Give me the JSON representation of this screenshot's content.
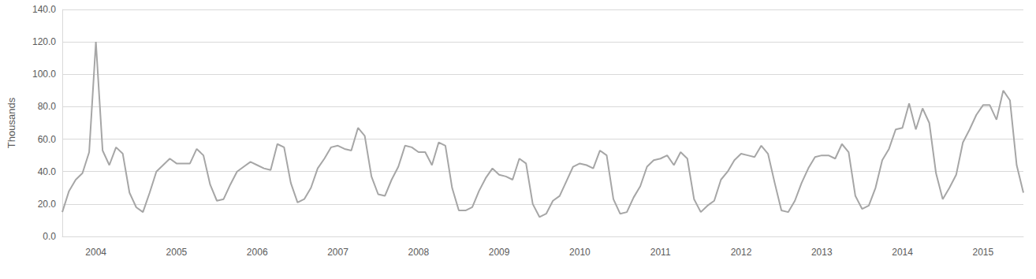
{
  "chart_data": {
    "type": "line",
    "y_label": "Thousands",
    "color": "#a6a6a6",
    "grid": true,
    "categories": [
      null,
      null,
      null,
      null,
      null,
      "2004",
      null,
      null,
      null,
      null,
      null,
      null,
      null,
      null,
      null,
      null,
      null,
      "2005",
      null,
      null,
      null,
      null,
      null,
      null,
      null,
      null,
      null,
      null,
      null,
      "2006",
      null,
      null,
      null,
      null,
      null,
      null,
      null,
      null,
      null,
      null,
      null,
      "2007",
      null,
      null,
      null,
      null,
      null,
      null,
      null,
      null,
      null,
      null,
      null,
      "2008",
      null,
      null,
      null,
      null,
      null,
      null,
      null,
      null,
      null,
      null,
      null,
      "2009",
      null,
      null,
      null,
      null,
      null,
      null,
      null,
      null,
      null,
      null,
      null,
      "2010",
      null,
      null,
      null,
      null,
      null,
      null,
      null,
      null,
      null,
      null,
      null,
      "2011",
      null,
      null,
      null,
      null,
      null,
      null,
      null,
      null,
      null,
      null,
      null,
      "2012",
      null,
      null,
      null,
      null,
      null,
      null,
      null,
      null,
      null,
      null,
      null,
      "2013",
      null,
      null,
      null,
      null,
      null,
      null,
      null,
      null,
      null,
      null,
      null,
      "2014",
      null,
      null,
      null,
      null,
      null,
      null,
      null,
      null,
      null,
      null,
      null,
      "2015",
      null,
      null,
      null,
      null,
      null,
      null
    ],
    "values": [
      15,
      28,
      35,
      39,
      52,
      120,
      53,
      44,
      55,
      51,
      27,
      18,
      15,
      27,
      40,
      44,
      48,
      45,
      45,
      45,
      54,
      50,
      32,
      22,
      23,
      32,
      40,
      43,
      46,
      44,
      42,
      41,
      57,
      55,
      33,
      21,
      23,
      30,
      42,
      48,
      55,
      56,
      54,
      53,
      67,
      62,
      37,
      26,
      25,
      35,
      43,
      56,
      55,
      52,
      52,
      44,
      58,
      56,
      30,
      16,
      16,
      18,
      28,
      36,
      42,
      38,
      37,
      35,
      48,
      45,
      20,
      12,
      14,
      22,
      25,
      34,
      43,
      45,
      44,
      42,
      53,
      50,
      23,
      14,
      15,
      24,
      31,
      43,
      47,
      48,
      50,
      44,
      52,
      48,
      23,
      15,
      19,
      22,
      35,
      40,
      47,
      51,
      50,
      49,
      56,
      51,
      33,
      16,
      15,
      22,
      33,
      42,
      49,
      50,
      50,
      48,
      57,
      52,
      25,
      17,
      19,
      30,
      47,
      54,
      66,
      67,
      82,
      66,
      79,
      70,
      39,
      23,
      30,
      38,
      58,
      66,
      75,
      81,
      81,
      72,
      90,
      84,
      44,
      27
    ],
    "ylim": [
      0,
      140
    ],
    "yticks": [
      {
        "value": 0,
        "label": "0.0"
      },
      {
        "value": 20,
        "label": "20.0"
      },
      {
        "value": 40,
        "label": "40.0"
      },
      {
        "value": 60,
        "label": "60.0"
      },
      {
        "value": 80,
        "label": "80.0"
      },
      {
        "value": 100,
        "label": "100.0"
      },
      {
        "value": 120,
        "label": "120.0"
      },
      {
        "value": 140,
        "label": "140.0"
      }
    ]
  }
}
